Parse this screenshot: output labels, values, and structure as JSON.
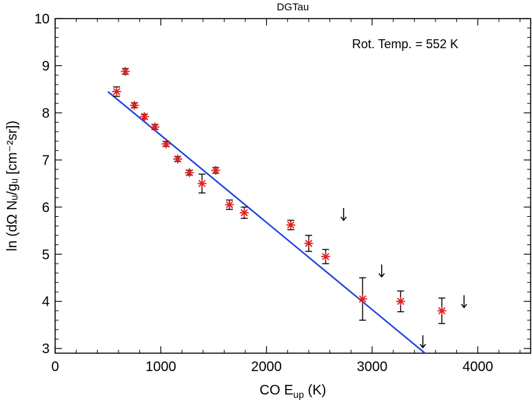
{
  "chart_data": {
    "type": "scatter",
    "title": "DGTau",
    "xlabel_main": "CO E",
    "xlabel_sub": "up",
    "xlabel_tail": " (K)",
    "ylabel": "ln (dΩ Nᵤ/gᵤ [cm⁻²sr])",
    "annotation": "Rot. Temp. = 552 K",
    "xlim": [
      0,
      4500
    ],
    "ylim": [
      2.9,
      10
    ],
    "xticks": [
      0,
      1000,
      2000,
      3000,
      4000
    ],
    "yticks": [
      3,
      4,
      5,
      6,
      7,
      8,
      9,
      10
    ],
    "points": [
      {
        "x": 582,
        "y": 8.45,
        "err": 0.1
      },
      {
        "x": 665,
        "y": 8.88,
        "err": 0.06
      },
      {
        "x": 750,
        "y": 8.16,
        "err": 0.05
      },
      {
        "x": 845,
        "y": 7.92,
        "err": 0.05
      },
      {
        "x": 945,
        "y": 7.7,
        "err": 0.05
      },
      {
        "x": 1050,
        "y": 7.34,
        "err": 0.05
      },
      {
        "x": 1160,
        "y": 7.02,
        "err": 0.05
      },
      {
        "x": 1270,
        "y": 6.73,
        "err": 0.05
      },
      {
        "x": 1390,
        "y": 6.5,
        "err": 0.2
      },
      {
        "x": 1520,
        "y": 6.78,
        "err": 0.06
      },
      {
        "x": 1650,
        "y": 6.05,
        "err": 0.1
      },
      {
        "x": 1790,
        "y": 5.88,
        "err": 0.12
      },
      {
        "x": 2230,
        "y": 5.62,
        "err": 0.1
      },
      {
        "x": 2400,
        "y": 5.23,
        "err": 0.17
      },
      {
        "x": 2560,
        "y": 4.95,
        "err": 0.15
      },
      {
        "x": 2910,
        "y": 4.05,
        "err": 0.45
      },
      {
        "x": 3270,
        "y": 4.0,
        "err": 0.22
      },
      {
        "x": 3660,
        "y": 3.8,
        "err": 0.27
      }
    ],
    "upper_limits": [
      {
        "x": 2730,
        "y": 5.85
      },
      {
        "x": 3090,
        "y": 4.65
      },
      {
        "x": 3480,
        "y": 3.15
      },
      {
        "x": 3870,
        "y": 4.0
      }
    ],
    "fit": {
      "x": [
        500,
        3500
      ],
      "y": [
        8.45,
        2.9
      ]
    },
    "colors": {
      "points": "#e02020",
      "errorbars": "#000000",
      "fit": "#1a3fe0",
      "annotation": "#1a3fe0"
    }
  }
}
